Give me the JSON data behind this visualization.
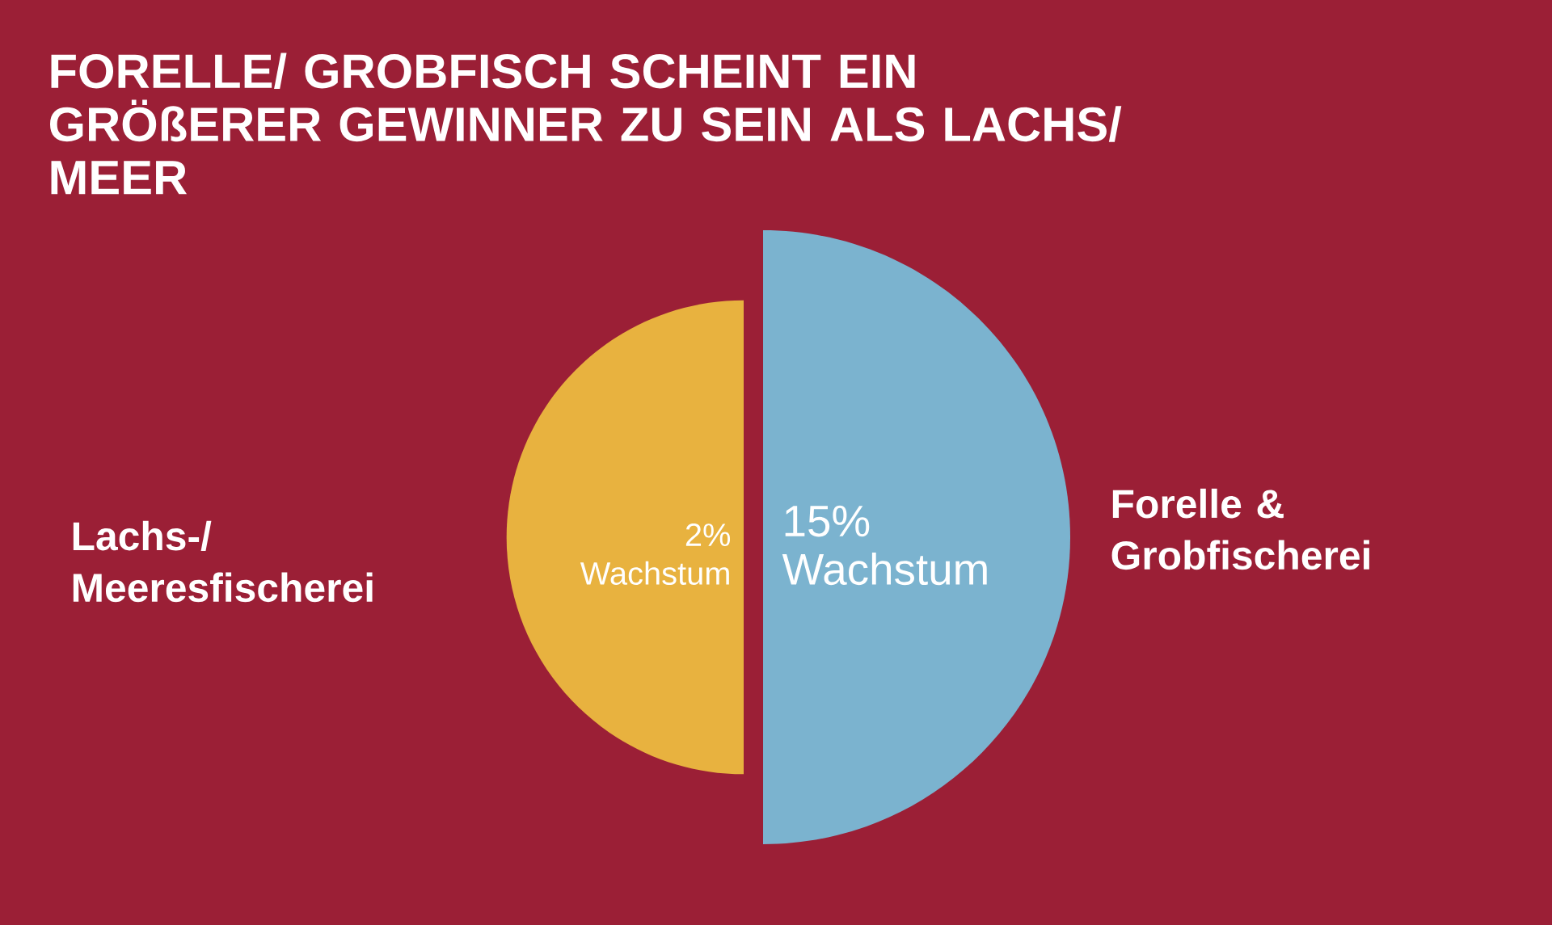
{
  "chart_data": {
    "type": "other",
    "title": "FORELLE/ GROBFISCH SCHEINT EIN GRÖßERER GEWINNER ZU SEIN ALS LACHS/ MEER",
    "categories": [
      "Lachs-/ Meeresfischerei",
      "Forelle & Grobfischerei"
    ],
    "values": [
      2,
      15
    ],
    "colors": [
      "#e8b23f",
      "#7bb3cf"
    ],
    "value_labels": [
      "2% Wachstum",
      "15% Wachstum"
    ]
  }
}
